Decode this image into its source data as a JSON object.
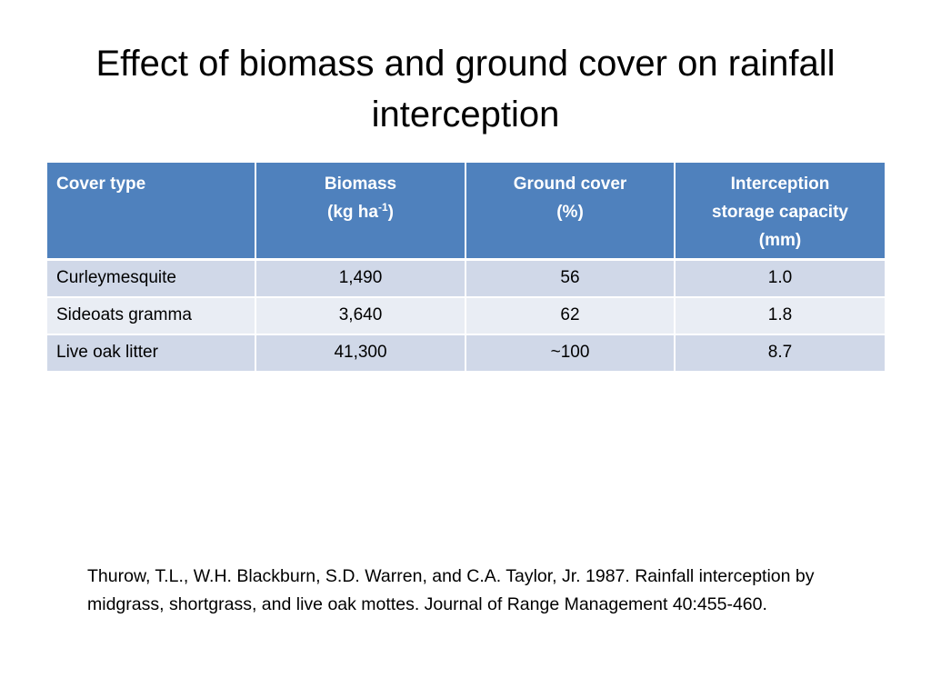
{
  "slide": {
    "title": "Effect of biomass and ground cover on rainfall interception"
  },
  "table": {
    "headers": {
      "cover_type": "Cover type",
      "biomass_line1": "Biomass",
      "biomass_unit_prefix": "(kg ha",
      "biomass_unit_sup": "-1",
      "biomass_unit_suffix": ")",
      "ground_cover_line1": "Ground cover",
      "ground_cover_line2": "(%)",
      "interception_line1": "Interception",
      "interception_line2": "storage capacity",
      "interception_line3": "(mm)"
    },
    "rows": [
      {
        "cover_type": "Curleymesquite",
        "biomass": "1,490",
        "ground_cover": "56",
        "interception": "1.0"
      },
      {
        "cover_type": "Sideoats gramma",
        "biomass": "3,640",
        "ground_cover": "62",
        "interception": "1.8"
      },
      {
        "cover_type": "Live oak litter",
        "biomass": "41,300",
        "ground_cover": "~100",
        "interception": "8.7"
      }
    ]
  },
  "citation": {
    "text": "Thurow, T.L., W.H. Blackburn, S.D. Warren, and C.A. Taylor, Jr. 1987. Rainfall interception by midgrass, shortgrass, and live oak mottes. Journal of Range Management 40:455-460."
  },
  "colors": {
    "header_bg": "#4f81bd",
    "row_odd_bg": "#d0d8e8",
    "row_even_bg": "#e9edf4"
  }
}
